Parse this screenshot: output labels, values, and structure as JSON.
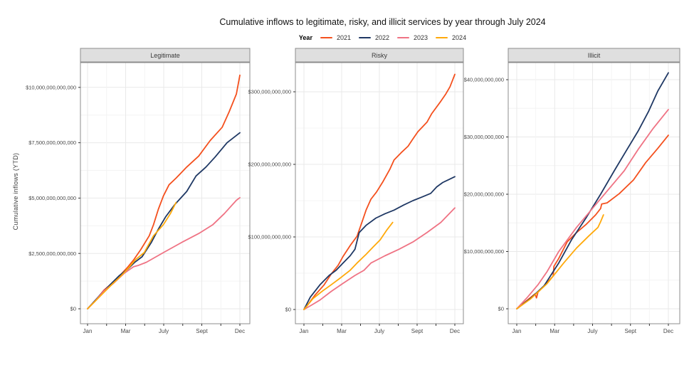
{
  "title": "Cumulative inflows to legitimate, risky, and illicit services by year through July 2024",
  "y_axis_title": "Cumulative inflows (YTD)",
  "legend": {
    "title": "Year",
    "entries": [
      {
        "label": "2021",
        "color": "#F4501E"
      },
      {
        "label": "2022",
        "color": "#1F3864"
      },
      {
        "label": "2023",
        "color": "#EF7384"
      },
      {
        "label": "2024",
        "color": "#FFA90A"
      }
    ]
  },
  "x_tick_labels": [
    "Jan",
    "",
    "Mar",
    "",
    "July",
    "",
    "Sept",
    "",
    "Dec"
  ],
  "chart_data": [
    {
      "type": "line",
      "title": "Legitimate",
      "unit": "USD billions",
      "xlabel": "",
      "x_range": "Jan through Dec (2024 series ends late July)",
      "ylim": [
        0,
        11000
      ],
      "grid": true,
      "y_ticks": [
        {
          "value": 0,
          "label": "$0"
        },
        {
          "value": 2500,
          "label": "$2,500,000,000,000"
        },
        {
          "value": 5000,
          "label": "$5,000,000,000,000"
        },
        {
          "value": 7500,
          "label": "$7,500,000,000,000"
        },
        {
          "value": 10000,
          "label": "$10,000,000,000,000"
        }
      ],
      "series": [
        {
          "name": "2021",
          "points": [
            [
              0,
              0
            ],
            [
              0.05,
              350
            ],
            [
              0.107,
              840
            ],
            [
              0.16,
              1150
            ],
            [
              0.209,
              1480
            ],
            [
              0.26,
              1850
            ],
            [
              0.302,
              2200
            ],
            [
              0.349,
              2670
            ],
            [
              0.405,
              3300
            ],
            [
              0.433,
              3800
            ],
            [
              0.465,
              4500
            ],
            [
              0.498,
              5100
            ],
            [
              0.535,
              5600
            ],
            [
              0.581,
              5900
            ],
            [
              0.651,
              6400
            ],
            [
              0.73,
              6900
            ],
            [
              0.805,
              7600
            ],
            [
              0.884,
              8200
            ],
            [
              0.93,
              8900
            ],
            [
              0.977,
              9700
            ],
            [
              1,
              10550
            ]
          ]
        },
        {
          "name": "2022",
          "points": [
            [
              0,
              0
            ],
            [
              0.079,
              600
            ],
            [
              0.15,
              1100
            ],
            [
              0.209,
              1500
            ],
            [
              0.265,
              1800
            ],
            [
              0.31,
              2100
            ],
            [
              0.358,
              2350
            ],
            [
              0.419,
              3000
            ],
            [
              0.465,
              3600
            ],
            [
              0.512,
              4150
            ],
            [
              0.572,
              4700
            ],
            [
              0.651,
              5300
            ],
            [
              0.712,
              6000
            ],
            [
              0.777,
              6400
            ],
            [
              0.837,
              6850
            ],
            [
              0.916,
              7500
            ],
            [
              1,
              7950
            ]
          ]
        },
        {
          "name": "2023",
          "points": [
            [
              0,
              0
            ],
            [
              0.047,
              330
            ],
            [
              0.107,
              800
            ],
            [
              0.172,
              1160
            ],
            [
              0.24,
              1600
            ],
            [
              0.302,
              1900
            ],
            [
              0.33,
              1950
            ],
            [
              0.386,
              2100
            ],
            [
              0.498,
              2540
            ],
            [
              0.619,
              3000
            ],
            [
              0.73,
              3400
            ],
            [
              0.823,
              3800
            ],
            [
              0.898,
              4300
            ],
            [
              0.977,
              4900
            ],
            [
              1,
              5020
            ]
          ]
        },
        {
          "name": "2024",
          "points": [
            [
              0,
              0
            ],
            [
              0.055,
              380
            ],
            [
              0.107,
              740
            ],
            [
              0.16,
              1100
            ],
            [
              0.219,
              1480
            ],
            [
              0.27,
              1850
            ],
            [
              0.312,
              2200
            ],
            [
              0.372,
              2540
            ],
            [
              0.433,
              3300
            ],
            [
              0.498,
              3800
            ],
            [
              0.544,
              4300
            ],
            [
              0.581,
              4800
            ]
          ]
        }
      ]
    },
    {
      "type": "line",
      "title": "Risky",
      "unit": "USD billions",
      "xlabel": "",
      "x_range": "Jan through Dec (2024 series ends late July)",
      "ylim": [
        0,
        340
      ],
      "grid": true,
      "y_ticks": [
        {
          "value": 0,
          "label": "$0"
        },
        {
          "value": 100,
          "label": "$100,000,000,000"
        },
        {
          "value": 200,
          "label": "$200,000,000,000"
        },
        {
          "value": 300,
          "label": "$300,000,000,000"
        }
      ],
      "series": [
        {
          "name": "2021",
          "points": [
            [
              0,
              0
            ],
            [
              0.02,
              5
            ],
            [
              0.074,
              20
            ],
            [
              0.134,
              34
            ],
            [
              0.181,
              49
            ],
            [
              0.227,
              61
            ],
            [
              0.259,
              73
            ],
            [
              0.306,
              88
            ],
            [
              0.352,
              101
            ],
            [
              0.384,
              120
            ],
            [
              0.412,
              137
            ],
            [
              0.444,
              152
            ],
            [
              0.481,
              162
            ],
            [
              0.523,
              176
            ],
            [
              0.569,
              193
            ],
            [
              0.597,
              206
            ],
            [
              0.644,
              216
            ],
            [
              0.69,
              225
            ],
            [
              0.722,
              235
            ],
            [
              0.755,
              245
            ],
            [
              0.815,
              258
            ],
            [
              0.847,
              270
            ],
            [
              0.907,
              287
            ],
            [
              0.94,
              297
            ],
            [
              0.968,
              307
            ],
            [
              1,
              324
            ]
          ]
        },
        {
          "name": "2022",
          "points": [
            [
              0,
              0
            ],
            [
              0.042,
              17
            ],
            [
              0.106,
              34
            ],
            [
              0.167,
              47
            ],
            [
              0.213,
              54
            ],
            [
              0.259,
              64
            ],
            [
              0.306,
              74
            ],
            [
              0.338,
              83
            ],
            [
              0.366,
              106
            ],
            [
              0.412,
              116
            ],
            [
              0.477,
              126
            ],
            [
              0.537,
              132
            ],
            [
              0.597,
              137
            ],
            [
              0.662,
              144
            ],
            [
              0.722,
              150
            ],
            [
              0.782,
              155
            ],
            [
              0.84,
              160
            ],
            [
              0.88,
              169
            ],
            [
              0.92,
              175
            ],
            [
              0.96,
              179
            ],
            [
              1,
              183
            ]
          ]
        },
        {
          "name": "2023",
          "points": [
            [
              0,
              0
            ],
            [
              0.05,
              6
            ],
            [
              0.106,
              13
            ],
            [
              0.181,
              25
            ],
            [
              0.259,
              36
            ],
            [
              0.338,
              47
            ],
            [
              0.398,
              54
            ],
            [
              0.444,
              64
            ],
            [
              0.537,
              74
            ],
            [
              0.63,
              83
            ],
            [
              0.722,
              93
            ],
            [
              0.815,
              106
            ],
            [
              0.907,
              120
            ],
            [
              1,
              140
            ]
          ]
        },
        {
          "name": "2024",
          "points": [
            [
              0,
              0
            ],
            [
              0.06,
              15
            ],
            [
              0.12,
              25
            ],
            [
              0.18,
              34
            ],
            [
              0.245,
              44
            ],
            [
              0.306,
              54
            ],
            [
              0.352,
              64
            ],
            [
              0.412,
              76
            ],
            [
              0.458,
              86
            ],
            [
              0.505,
              96
            ],
            [
              0.551,
              110
            ],
            [
              0.588,
              120
            ]
          ]
        }
      ]
    },
    {
      "type": "line",
      "title": "Illicit",
      "unit": "USD billions",
      "xlabel": "",
      "x_range": "Jan through Dec (2024 series ends late July)",
      "ylim": [
        0,
        43
      ],
      "grid": true,
      "y_ticks": [
        {
          "value": 0,
          "label": "$0"
        },
        {
          "value": 10,
          "label": "$10,000,000,000"
        },
        {
          "value": 20,
          "label": "$20,000,000,000"
        },
        {
          "value": 30,
          "label": "$30,000,000,000"
        },
        {
          "value": 40,
          "label": "$40,000,000,000"
        }
      ],
      "series": [
        {
          "name": "2021",
          "points": [
            [
              0,
              0
            ],
            [
              0.06,
              1.3
            ],
            [
              0.12,
              2.6
            ],
            [
              0.13,
              1.9
            ],
            [
              0.14,
              2.9
            ],
            [
              0.18,
              4
            ],
            [
              0.24,
              5.7
            ],
            [
              0.245,
              7.4
            ],
            [
              0.277,
              8.8
            ],
            [
              0.333,
              11.7
            ],
            [
              0.394,
              13.3
            ],
            [
              0.46,
              14.8
            ],
            [
              0.52,
              16.4
            ],
            [
              0.553,
              17.5
            ],
            [
              0.56,
              18.3
            ],
            [
              0.596,
              18.5
            ],
            [
              0.676,
              20.1
            ],
            [
              0.77,
              22.5
            ],
            [
              0.85,
              25.5
            ],
            [
              0.93,
              28
            ],
            [
              1,
              30.3
            ]
          ]
        },
        {
          "name": "2022",
          "points": [
            [
              0,
              0
            ],
            [
              0.09,
              1.8
            ],
            [
              0.18,
              4
            ],
            [
              0.277,
              8
            ],
            [
              0.36,
              12
            ],
            [
              0.46,
              16
            ],
            [
              0.553,
              20
            ],
            [
              0.643,
              24.1
            ],
            [
              0.72,
              27.5
            ],
            [
              0.8,
              31
            ],
            [
              0.87,
              34.5
            ],
            [
              0.93,
              38
            ],
            [
              1,
              41.2
            ]
          ]
        },
        {
          "name": "2023",
          "points": [
            [
              0,
              0
            ],
            [
              0.07,
              2
            ],
            [
              0.14,
              4.2
            ],
            [
              0.2,
              6.5
            ],
            [
              0.277,
              10
            ],
            [
              0.394,
              14.2
            ],
            [
              0.55,
              19.1
            ],
            [
              0.709,
              24.1
            ],
            [
              0.8,
              27.8
            ],
            [
              0.9,
              31.5
            ],
            [
              1,
              34.8
            ]
          ]
        },
        {
          "name": "2024",
          "points": [
            [
              0,
              0
            ],
            [
              0.09,
              1.7
            ],
            [
              0.2,
              4.4
            ],
            [
              0.31,
              8
            ],
            [
              0.394,
              10.6
            ],
            [
              0.474,
              12.7
            ],
            [
              0.535,
              14.2
            ],
            [
              0.553,
              15.2
            ],
            [
              0.572,
              16.4
            ]
          ]
        }
      ]
    }
  ]
}
